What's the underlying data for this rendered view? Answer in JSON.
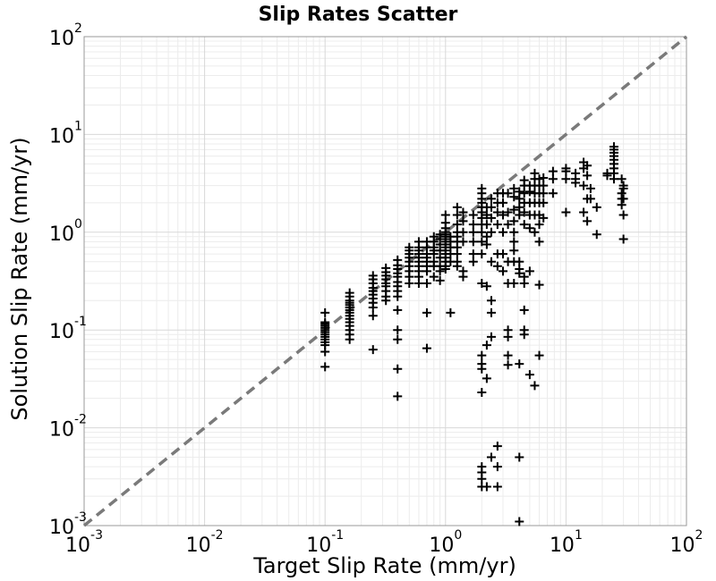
{
  "chart_data": {
    "type": "scatter",
    "title": "Slip Rates Scatter",
    "xlabel": "Target Slip Rate (mm/yr)",
    "ylabel": "Solution Slip Rate (mm/yr)",
    "x_scale": "log",
    "y_scale": "log",
    "xlim": [
      0.001,
      100
    ],
    "ylim": [
      0.001,
      100
    ],
    "grid": true,
    "reference_line": {
      "style": "dashed",
      "color": "#7a7a7a",
      "slope": 1
    },
    "marker": {
      "shape": "plus",
      "color": "#000000"
    },
    "x_ticks": [
      {
        "base": "10",
        "exp": "-3"
      },
      {
        "base": "10",
        "exp": "-2"
      },
      {
        "base": "10",
        "exp": "-1"
      },
      {
        "base": "10",
        "exp": "0"
      },
      {
        "base": "10",
        "exp": "1"
      },
      {
        "base": "10",
        "exp": "2"
      }
    ],
    "y_ticks": [
      {
        "base": "10",
        "exp": "-3"
      },
      {
        "base": "10",
        "exp": "-2"
      },
      {
        "base": "10",
        "exp": "-1"
      },
      {
        "base": "10",
        "exp": "0"
      },
      {
        "base": "10",
        "exp": "1"
      },
      {
        "base": "10",
        "exp": "2"
      }
    ],
    "points": [
      [
        0.1,
        0.07
      ],
      [
        0.1,
        0.075
      ],
      [
        0.1,
        0.08
      ],
      [
        0.1,
        0.085
      ],
      [
        0.1,
        0.09
      ],
      [
        0.1,
        0.095
      ],
      [
        0.1,
        0.1
      ],
      [
        0.1,
        0.105
      ],
      [
        0.1,
        0.11
      ],
      [
        0.1,
        0.115
      ],
      [
        0.1,
        0.12
      ],
      [
        0.1,
        0.15
      ],
      [
        0.1,
        0.06
      ],
      [
        0.1,
        0.042
      ],
      [
        0.16,
        0.1
      ],
      [
        0.16,
        0.11
      ],
      [
        0.16,
        0.12
      ],
      [
        0.16,
        0.13
      ],
      [
        0.16,
        0.14
      ],
      [
        0.16,
        0.15
      ],
      [
        0.16,
        0.16
      ],
      [
        0.16,
        0.17
      ],
      [
        0.16,
        0.18
      ],
      [
        0.16,
        0.19
      ],
      [
        0.16,
        0.2
      ],
      [
        0.16,
        0.22
      ],
      [
        0.16,
        0.24
      ],
      [
        0.16,
        0.09
      ],
      [
        0.16,
        0.08
      ],
      [
        0.25,
        0.17
      ],
      [
        0.25,
        0.19
      ],
      [
        0.25,
        0.21
      ],
      [
        0.25,
        0.23
      ],
      [
        0.25,
        0.25
      ],
      [
        0.25,
        0.27
      ],
      [
        0.25,
        0.3
      ],
      [
        0.25,
        0.33
      ],
      [
        0.25,
        0.36
      ],
      [
        0.25,
        0.14
      ],
      [
        0.25,
        0.063
      ],
      [
        0.32,
        0.25
      ],
      [
        0.32,
        0.28
      ],
      [
        0.32,
        0.3
      ],
      [
        0.32,
        0.33
      ],
      [
        0.32,
        0.36
      ],
      [
        0.32,
        0.39
      ],
      [
        0.32,
        0.43
      ],
      [
        0.32,
        0.22
      ],
      [
        0.32,
        0.2
      ],
      [
        0.4,
        0.28
      ],
      [
        0.4,
        0.31
      ],
      [
        0.4,
        0.35
      ],
      [
        0.4,
        0.38
      ],
      [
        0.4,
        0.42
      ],
      [
        0.4,
        0.46
      ],
      [
        0.4,
        0.52
      ],
      [
        0.4,
        0.25
      ],
      [
        0.4,
        0.22
      ],
      [
        0.4,
        0.16
      ],
      [
        0.4,
        0.1
      ],
      [
        0.4,
        0.08
      ],
      [
        0.4,
        0.04
      ],
      [
        0.4,
        0.021
      ],
      [
        0.5,
        0.35
      ],
      [
        0.5,
        0.4
      ],
      [
        0.5,
        0.45
      ],
      [
        0.5,
        0.5
      ],
      [
        0.5,
        0.55
      ],
      [
        0.5,
        0.6
      ],
      [
        0.5,
        0.65
      ],
      [
        0.5,
        0.7
      ],
      [
        0.5,
        0.3
      ],
      [
        0.6,
        0.45
      ],
      [
        0.6,
        0.5
      ],
      [
        0.6,
        0.55
      ],
      [
        0.6,
        0.6
      ],
      [
        0.6,
        0.65
      ],
      [
        0.6,
        0.7
      ],
      [
        0.6,
        0.8
      ],
      [
        0.6,
        0.4
      ],
      [
        0.6,
        0.35
      ],
      [
        0.6,
        0.3
      ],
      [
        0.7,
        0.5
      ],
      [
        0.7,
        0.55
      ],
      [
        0.7,
        0.6
      ],
      [
        0.7,
        0.7
      ],
      [
        0.7,
        0.8
      ],
      [
        0.7,
        0.45
      ],
      [
        0.7,
        0.4
      ],
      [
        0.7,
        0.3
      ],
      [
        0.7,
        0.15
      ],
      [
        0.7,
        0.065
      ],
      [
        0.8,
        0.5
      ],
      [
        0.8,
        0.6
      ],
      [
        0.8,
        0.65
      ],
      [
        0.8,
        0.7
      ],
      [
        0.8,
        0.8
      ],
      [
        0.8,
        0.9
      ],
      [
        0.8,
        0.45
      ],
      [
        0.8,
        0.35
      ],
      [
        0.9,
        0.55
      ],
      [
        0.9,
        0.65
      ],
      [
        0.9,
        0.75
      ],
      [
        0.9,
        0.85
      ],
      [
        0.9,
        0.95
      ],
      [
        0.9,
        0.45
      ],
      [
        0.9,
        0.4
      ],
      [
        0.9,
        0.32
      ],
      [
        1.0,
        0.5
      ],
      [
        1.0,
        0.55
      ],
      [
        1.0,
        0.6
      ],
      [
        1.0,
        0.65
      ],
      [
        1.0,
        0.7
      ],
      [
        1.0,
        0.75
      ],
      [
        1.0,
        0.8
      ],
      [
        1.0,
        0.85
      ],
      [
        1.0,
        0.9
      ],
      [
        1.0,
        0.95
      ],
      [
        1.0,
        1.0
      ],
      [
        1.0,
        1.1
      ],
      [
        1.0,
        1.25
      ],
      [
        1.0,
        1.5
      ],
      [
        1.0,
        0.45
      ],
      [
        1.0,
        0.42
      ],
      [
        1.1,
        0.6
      ],
      [
        1.1,
        0.7
      ],
      [
        1.1,
        0.8
      ],
      [
        1.1,
        0.9
      ],
      [
        1.1,
        0.5
      ],
      [
        1.1,
        0.15
      ],
      [
        1.25,
        0.5
      ],
      [
        1.25,
        0.6
      ],
      [
        1.25,
        0.7
      ],
      [
        1.25,
        0.8
      ],
      [
        1.25,
        0.9
      ],
      [
        1.25,
        1.0
      ],
      [
        1.25,
        1.2
      ],
      [
        1.25,
        1.5
      ],
      [
        1.25,
        1.8
      ],
      [
        1.25,
        0.45
      ],
      [
        1.4,
        1.0
      ],
      [
        1.4,
        1.3
      ],
      [
        1.4,
        1.6
      ],
      [
        1.4,
        0.8
      ],
      [
        1.4,
        0.4
      ],
      [
        1.4,
        0.35
      ],
      [
        1.7,
        0.6
      ],
      [
        1.7,
        0.8
      ],
      [
        1.7,
        1.0
      ],
      [
        1.7,
        1.2
      ],
      [
        1.7,
        1.5
      ],
      [
        1.7,
        0.5
      ],
      [
        2.0,
        1.0
      ],
      [
        2.0,
        1.2
      ],
      [
        2.0,
        1.4
      ],
      [
        2.0,
        1.6
      ],
      [
        2.0,
        1.8
      ],
      [
        2.0,
        2.0
      ],
      [
        2.0,
        2.2
      ],
      [
        2.0,
        2.5
      ],
      [
        2.0,
        2.8
      ],
      [
        2.0,
        0.8
      ],
      [
        2.0,
        0.6
      ],
      [
        2.0,
        0.3
      ],
      [
        2.0,
        0.055
      ],
      [
        2.0,
        0.045
      ],
      [
        2.0,
        0.04
      ],
      [
        2.0,
        0.023
      ],
      [
        2.0,
        0.004
      ],
      [
        2.0,
        0.0035
      ],
      [
        2.0,
        0.003
      ],
      [
        2.0,
        0.0025
      ],
      [
        2.2,
        1.2
      ],
      [
        2.2,
        1.5
      ],
      [
        2.2,
        1.8
      ],
      [
        2.2,
        0.9
      ],
      [
        2.2,
        0.75
      ],
      [
        2.2,
        0.28
      ],
      [
        2.2,
        0.07
      ],
      [
        2.2,
        0.032
      ],
      [
        2.2,
        0.0025
      ],
      [
        2.4,
        1.0
      ],
      [
        2.4,
        1.4
      ],
      [
        2.4,
        1.8
      ],
      [
        2.4,
        2.2
      ],
      [
        2.4,
        0.5
      ],
      [
        2.4,
        0.2
      ],
      [
        2.4,
        0.15
      ],
      [
        2.4,
        0.085
      ],
      [
        2.4,
        0.005
      ],
      [
        2.7,
        1.2
      ],
      [
        2.7,
        1.6
      ],
      [
        2.7,
        2.0
      ],
      [
        2.7,
        2.5
      ],
      [
        2.7,
        0.6
      ],
      [
        2.7,
        0.45
      ],
      [
        2.7,
        0.0065
      ],
      [
        2.7,
        0.004
      ],
      [
        2.7,
        0.0025
      ],
      [
        3.0,
        1.5
      ],
      [
        3.0,
        2.0
      ],
      [
        3.0,
        2.5
      ],
      [
        3.0,
        1.0
      ],
      [
        3.0,
        0.6
      ],
      [
        3.0,
        0.4
      ],
      [
        3.3,
        1.2
      ],
      [
        3.3,
        1.6
      ],
      [
        3.3,
        2.5
      ],
      [
        3.3,
        0.5
      ],
      [
        3.3,
        0.3
      ],
      [
        3.3,
        0.1
      ],
      [
        3.3,
        0.085
      ],
      [
        3.3,
        0.055
      ],
      [
        3.3,
        0.044
      ],
      [
        3.7,
        0.8
      ],
      [
        3.7,
        1.0
      ],
      [
        3.7,
        1.3
      ],
      [
        3.7,
        1.7
      ],
      [
        3.7,
        2.3
      ],
      [
        3.7,
        2.8
      ],
      [
        3.7,
        0.65
      ],
      [
        3.7,
        0.5
      ],
      [
        3.7,
        0.3
      ],
      [
        4.1,
        1.5
      ],
      [
        4.1,
        1.8
      ],
      [
        4.1,
        2.2
      ],
      [
        4.1,
        2.6
      ],
      [
        4.1,
        0.5
      ],
      [
        4.1,
        0.42
      ],
      [
        4.1,
        0.38
      ],
      [
        4.1,
        0.045
      ],
      [
        4.1,
        0.005
      ],
      [
        4.1,
        0.0011
      ],
      [
        4.5,
        1.6
      ],
      [
        4.5,
        2.0
      ],
      [
        4.5,
        2.5
      ],
      [
        4.5,
        3.0
      ],
      [
        4.5,
        3.4
      ],
      [
        4.5,
        1.2
      ],
      [
        4.5,
        0.35
      ],
      [
        4.5,
        0.3
      ],
      [
        4.5,
        0.16
      ],
      [
        4.5,
        0.09
      ],
      [
        4.5,
        0.1
      ],
      [
        5.0,
        2.0
      ],
      [
        5.0,
        2.6
      ],
      [
        5.0,
        3.0
      ],
      [
        5.0,
        1.5
      ],
      [
        5.0,
        1.1
      ],
      [
        5.0,
        0.4
      ],
      [
        5.0,
        0.035
      ],
      [
        5.5,
        1.5
      ],
      [
        5.5,
        2.0
      ],
      [
        5.5,
        2.5
      ],
      [
        5.5,
        3.0
      ],
      [
        5.5,
        3.5
      ],
      [
        5.5,
        4.0
      ],
      [
        5.5,
        1.0
      ],
      [
        5.5,
        0.027
      ],
      [
        6.0,
        2.0
      ],
      [
        6.0,
        2.5
      ],
      [
        6.0,
        3.0
      ],
      [
        6.0,
        3.5
      ],
      [
        6.0,
        1.5
      ],
      [
        6.0,
        1.2
      ],
      [
        6.0,
        0.8
      ],
      [
        6.0,
        0.29
      ],
      [
        6.0,
        0.055
      ],
      [
        6.5,
        2.5
      ],
      [
        6.5,
        3.0
      ],
      [
        6.5,
        3.6
      ],
      [
        6.5,
        2.0
      ],
      [
        6.5,
        1.4
      ],
      [
        7.8,
        3.5
      ],
      [
        7.8,
        4.2
      ],
      [
        7.8,
        2.5
      ],
      [
        10.0,
        3.5
      ],
      [
        10.0,
        4.2
      ],
      [
        10.0,
        4.5
      ],
      [
        10.0,
        1.6
      ],
      [
        12.0,
        3.5
      ],
      [
        12.0,
        4.0
      ],
      [
        12.0,
        3.2
      ],
      [
        14.0,
        4.5
      ],
      [
        14.0,
        5.2
      ],
      [
        14.0,
        3.0
      ],
      [
        14.0,
        1.6
      ],
      [
        15.0,
        4.8
      ],
      [
        15.0,
        3.8
      ],
      [
        15.0,
        2.2
      ],
      [
        15.0,
        1.3
      ],
      [
        16.0,
        2.2
      ],
      [
        16.0,
        2.8
      ],
      [
        18.0,
        0.95
      ],
      [
        18.0,
        1.8
      ],
      [
        22.0,
        4.0
      ],
      [
        22.0,
        3.8
      ],
      [
        25.0,
        3.5
      ],
      [
        25.0,
        4.0
      ],
      [
        25.0,
        4.5
      ],
      [
        25.0,
        5.0
      ],
      [
        25.0,
        5.5
      ],
      [
        25.0,
        6.0
      ],
      [
        25.0,
        6.5
      ],
      [
        25.0,
        7.0
      ],
      [
        25.0,
        7.5
      ],
      [
        29.0,
        3.5
      ],
      [
        29.0,
        2.5
      ],
      [
        29.0,
        2.2
      ],
      [
        29.0,
        1.9
      ],
      [
        30.0,
        3.0
      ],
      [
        30.0,
        2.8
      ],
      [
        30.0,
        2.2
      ],
      [
        30.0,
        1.5
      ],
      [
        30.0,
        0.85
      ]
    ]
  }
}
